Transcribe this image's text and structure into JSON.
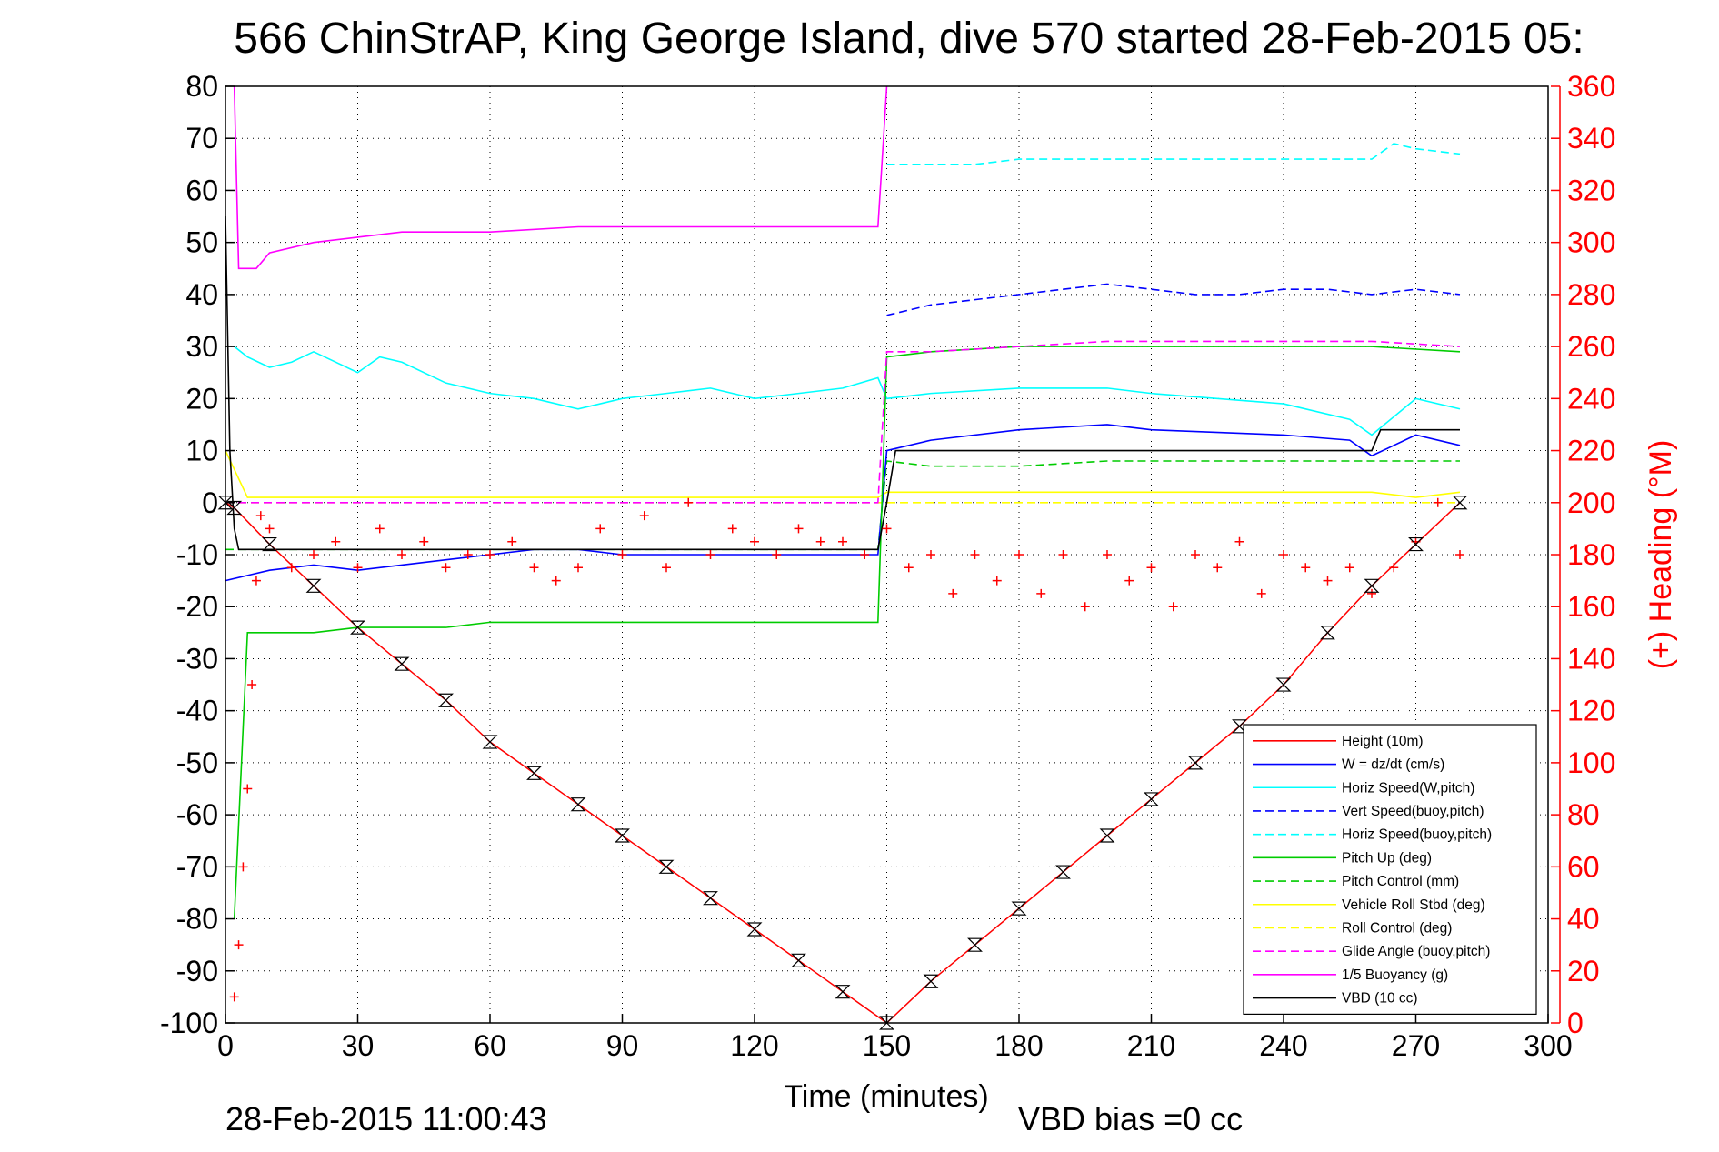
{
  "chart_data": {
    "type": "line",
    "title": "566 ChinStrAP, King George Island, dive 570 started 28-Feb-2015 05:",
    "xlabel": "Time (minutes)",
    "ylabel": "",
    "y2label": "(+) Heading (°M)",
    "xlim": [
      0,
      300
    ],
    "ylim": [
      -100,
      80
    ],
    "y2lim": [
      0,
      360
    ],
    "xticks": [
      "0",
      "30",
      "60",
      "90",
      "120",
      "150",
      "180",
      "210",
      "240",
      "270",
      "300"
    ],
    "yticks": [
      "80",
      "70",
      "60",
      "50",
      "40",
      "30",
      "20",
      "10",
      "0",
      "-10",
      "-20",
      "-30",
      "-40",
      "-50",
      "-60",
      "-70",
      "-80",
      "-90",
      "-100"
    ],
    "y2ticks": [
      "360",
      "340",
      "320",
      "300",
      "280",
      "260",
      "240",
      "220",
      "200",
      "180",
      "160",
      "140",
      "120",
      "100",
      "80",
      "60",
      "40",
      "20",
      "0"
    ],
    "grid": true,
    "legend_position": "lower-right",
    "footer_left": "28-Feb-2015 11:00:43",
    "footer_right": "VBD bias =0 cc",
    "series": [
      {
        "name": "Height (10m)",
        "color": "#ff0000",
        "style": "solid",
        "x": [
          0,
          2,
          10,
          20,
          30,
          40,
          50,
          60,
          70,
          80,
          90,
          100,
          110,
          120,
          130,
          140,
          150,
          160,
          170,
          180,
          190,
          200,
          210,
          220,
          230,
          240,
          250,
          260,
          270,
          280
        ],
        "y": [
          0,
          -1,
          -8,
          -16,
          -24,
          -31,
          -38,
          -46,
          -52,
          -58,
          -64,
          -70,
          -76,
          -82,
          -88,
          -94,
          -100,
          -92,
          -85,
          -78,
          -71,
          -64,
          -57,
          -50,
          -43,
          -35,
          -25,
          -16,
          -8,
          0
        ]
      },
      {
        "name": "W = dz/dt (cm/s)",
        "color": "#0000ff",
        "style": "solid",
        "x": [
          0,
          5,
          10,
          20,
          30,
          40,
          50,
          60,
          70,
          80,
          90,
          100,
          110,
          120,
          130,
          140,
          148,
          150,
          160,
          180,
          200,
          210,
          240,
          255,
          260,
          270,
          280
        ],
        "y": [
          -15,
          -14,
          -13,
          -12,
          -13,
          -12,
          -11,
          -10,
          -9,
          -9,
          -10,
          -10,
          -10,
          -10,
          -10,
          -10,
          -10,
          10,
          12,
          14,
          15,
          14,
          13,
          12,
          9,
          13,
          11
        ]
      },
      {
        "name": "Horiz Speed(W,pitch)",
        "color": "#00ffff",
        "style": "solid",
        "x": [
          2,
          5,
          10,
          15,
          20,
          30,
          35,
          40,
          50,
          60,
          70,
          80,
          90,
          100,
          110,
          120,
          130,
          140,
          148,
          150,
          160,
          180,
          200,
          210,
          240,
          255,
          260,
          270,
          280
        ],
        "y": [
          30,
          28,
          26,
          27,
          29,
          25,
          28,
          27,
          23,
          21,
          20,
          18,
          20,
          21,
          22,
          20,
          21,
          22,
          24,
          20,
          21,
          22,
          22,
          21,
          19,
          16,
          13,
          20,
          18
        ]
      },
      {
        "name": "Vert Speed(buoy,pitch)",
        "color": "#0000ff",
        "style": "dash",
        "x": [
          150,
          160,
          170,
          180,
          190,
          200,
          210,
          220,
          230,
          240,
          250,
          260,
          270,
          280
        ],
        "y": [
          36,
          38,
          39,
          40,
          41,
          42,
          41,
          40,
          40,
          41,
          41,
          40,
          41,
          40
        ]
      },
      {
        "name": "Horiz Speed(buoy,pitch)",
        "color": "#00ffff",
        "style": "dash",
        "x": [
          150,
          160,
          170,
          180,
          190,
          200,
          210,
          220,
          230,
          240,
          250,
          260,
          265,
          270,
          280
        ],
        "y": [
          65,
          65,
          65,
          66,
          66,
          66,
          66,
          66,
          66,
          66,
          66,
          66,
          69,
          68,
          67
        ]
      },
      {
        "name": "Pitch Up (deg)",
        "color": "#00cc00",
        "style": "solid",
        "x": [
          2,
          5,
          10,
          20,
          30,
          40,
          50,
          60,
          70,
          80,
          90,
          100,
          110,
          120,
          130,
          140,
          148,
          150,
          160,
          180,
          200,
          220,
          240,
          260,
          280
        ],
        "y": [
          -80,
          -25,
          -25,
          -25,
          -24,
          -24,
          -24,
          -23,
          -23,
          -23,
          -23,
          -23,
          -23,
          -23,
          -23,
          -23,
          -23,
          28,
          29,
          30,
          30,
          30,
          30,
          30,
          29
        ]
      },
      {
        "name": "Pitch Control (mm)",
        "color": "#00cc00",
        "style": "dash",
        "x": [
          0,
          148,
          150,
          160,
          180,
          200,
          220,
          240,
          260,
          280
        ],
        "y": [
          -9,
          -9,
          8,
          7,
          7,
          8,
          8,
          8,
          8,
          8
        ]
      },
      {
        "name": "Vehicle Roll Stbd (deg)",
        "color": "#ffff00",
        "style": "solid",
        "x": [
          0,
          5,
          10,
          20,
          30,
          40,
          50,
          60,
          70,
          80,
          90,
          100,
          110,
          120,
          130,
          140,
          148,
          150,
          160,
          180,
          200,
          220,
          240,
          260,
          270,
          280
        ],
        "y": [
          10,
          1,
          1,
          1,
          1,
          1,
          1,
          1,
          1,
          1,
          1,
          1,
          1,
          1,
          1,
          1,
          1,
          2,
          2,
          2,
          2,
          2,
          2,
          2,
          1,
          2
        ]
      },
      {
        "name": "Roll Control (deg)",
        "color": "#ffff00",
        "style": "dash",
        "x": [
          0,
          148,
          150,
          280
        ],
        "y": [
          0,
          0,
          0,
          0
        ]
      },
      {
        "name": "Glide Angle (buoy,pitch)",
        "color": "#ff00ff",
        "style": "dash",
        "x": [
          0,
          148,
          150,
          160,
          180,
          200,
          220,
          240,
          260,
          280
        ],
        "y": [
          0,
          0,
          29,
          29,
          30,
          31,
          31,
          31,
          31,
          30
        ]
      },
      {
        "name": "1/5 Buoyancy (g)",
        "color": "#ff00ff",
        "style": "solid",
        "x": [
          2,
          3,
          5,
          7,
          10,
          20,
          30,
          40,
          60,
          80,
          100,
          120,
          140,
          148,
          150
        ],
        "y": [
          80,
          45,
          45,
          45,
          48,
          50,
          51,
          52,
          52,
          53,
          53,
          53,
          53,
          53,
          80
        ]
      },
      {
        "name": "VBD (10 cc)",
        "color": "#000000",
        "style": "solid",
        "x": [
          0,
          1,
          2,
          3,
          148,
          150,
          152,
          160,
          170,
          180,
          190,
          200,
          210,
          220,
          230,
          240,
          250,
          260,
          262,
          280
        ],
        "y": [
          55,
          10,
          -5,
          -9,
          -9,
          0,
          10,
          10,
          10,
          10,
          10,
          10,
          10,
          10,
          10,
          10,
          10,
          10,
          14,
          14
        ]
      }
    ],
    "heading": {
      "axis": "right",
      "color": "#ff0000",
      "marker": "+",
      "x": [
        2,
        3,
        4,
        5,
        6,
        7,
        8,
        10,
        15,
        20,
        25,
        30,
        35,
        40,
        45,
        50,
        55,
        60,
        65,
        70,
        75,
        80,
        85,
        90,
        95,
        100,
        105,
        110,
        115,
        120,
        125,
        130,
        135,
        140,
        145,
        150,
        155,
        160,
        165,
        170,
        175,
        180,
        185,
        190,
        195,
        200,
        205,
        210,
        215,
        220,
        225,
        230,
        235,
        240,
        245,
        250,
        255,
        260,
        265,
        270,
        275,
        280
      ],
      "y": [
        10,
        30,
        60,
        90,
        130,
        170,
        195,
        190,
        175,
        180,
        185,
        175,
        190,
        180,
        185,
        175,
        180,
        180,
        185,
        175,
        170,
        175,
        190,
        180,
        195,
        175,
        200,
        180,
        190,
        185,
        180,
        190,
        185,
        185,
        180,
        190,
        175,
        180,
        165,
        180,
        170,
        180,
        165,
        180,
        160,
        180,
        170,
        175,
        160,
        180,
        175,
        185,
        165,
        180,
        175,
        170,
        175,
        165,
        175,
        185,
        200,
        180
      ]
    }
  }
}
